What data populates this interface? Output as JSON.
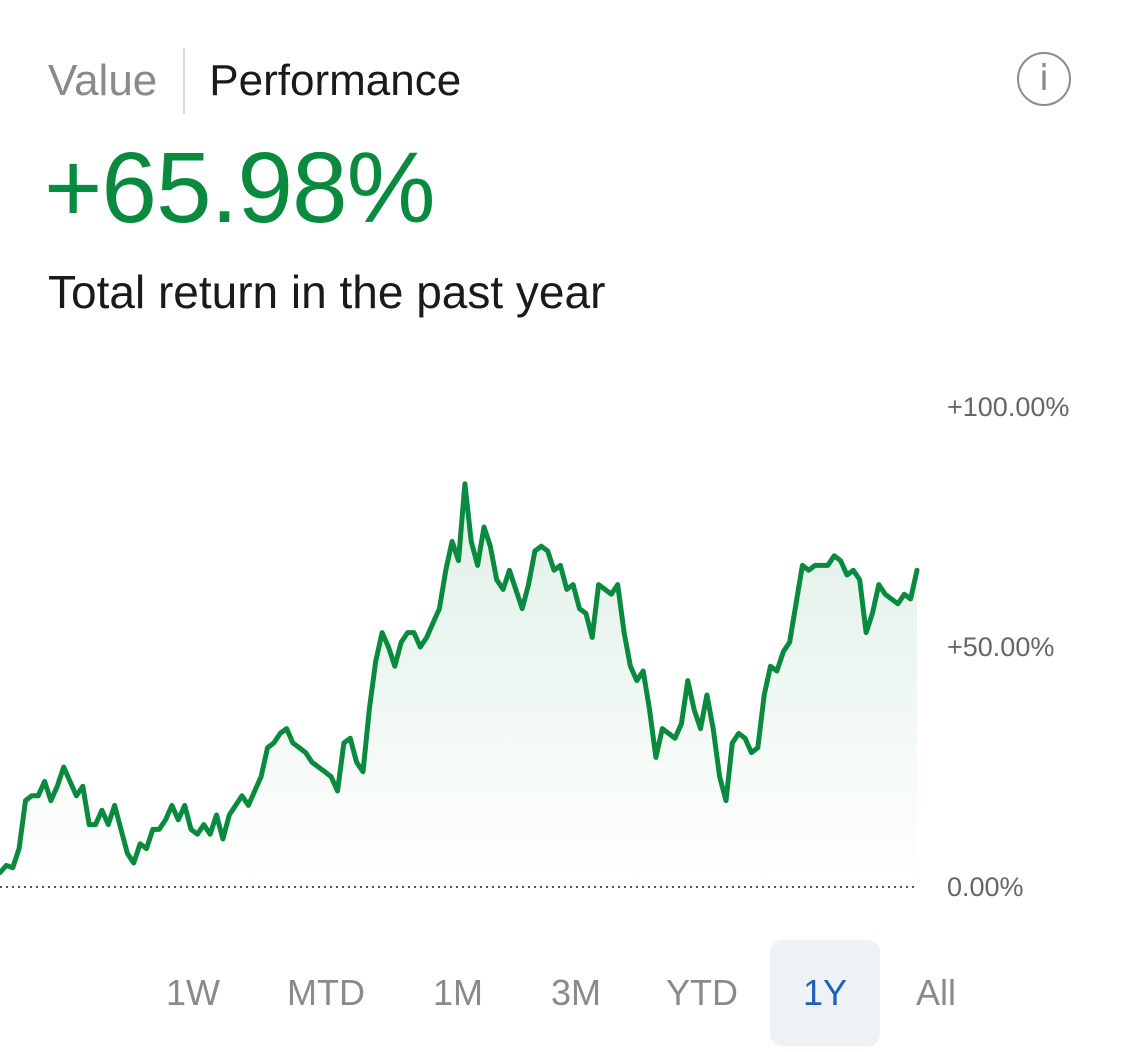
{
  "tabs": {
    "value_label": "Value",
    "performance_label": "Performance",
    "selected": "Performance"
  },
  "info_icon": {
    "icon": "info-icon",
    "glyph": "i"
  },
  "summary": {
    "value": "+65.98%",
    "caption": "Total return in the past year"
  },
  "colors": {
    "positive": "#0a8a3f",
    "muted": "#8a8a8a",
    "selected_range_text": "#1f5fbf",
    "selected_range_bg": "#eef1f5"
  },
  "ranges": {
    "items": [
      "1W",
      "MTD",
      "1M",
      "3M",
      "YTD",
      "1Y",
      "All"
    ],
    "selected": "1Y"
  },
  "chart_data": {
    "type": "area",
    "title": "",
    "xlabel": "",
    "ylabel": "",
    "ylim": [
      0,
      100
    ],
    "y_ticks": [
      100,
      50,
      0
    ],
    "y_tick_labels": [
      "+100.00%",
      "+50.00%",
      "0.00%"
    ],
    "baseline": 0,
    "baseline_style": "dotted",
    "y_axis_position": "right",
    "grid": false,
    "series": [
      {
        "values": [
          3,
          4.5,
          4,
          8,
          18,
          19,
          19,
          22,
          18,
          21,
          25,
          22,
          19,
          21,
          13,
          13,
          16,
          13,
          17,
          12,
          7,
          5,
          9,
          8,
          12,
          12,
          14,
          17,
          14,
          17,
          12,
          11,
          13,
          11,
          15,
          10,
          15,
          17,
          19,
          17,
          20,
          23,
          29,
          30,
          32,
          33,
          30,
          29,
          28,
          26,
          25,
          24,
          23,
          20,
          30,
          31,
          26,
          24,
          37,
          47,
          53,
          50,
          46,
          51,
          53,
          53,
          50,
          52,
          55,
          58,
          66,
          72,
          68,
          84,
          72,
          67,
          75,
          71,
          64,
          62,
          66,
          62,
          58,
          63,
          70,
          71,
          70,
          66,
          67,
          62,
          63,
          58,
          57,
          52,
          63,
          62,
          61,
          63,
          53,
          46,
          43,
          45,
          37,
          27,
          33,
          32,
          31,
          34,
          43,
          37,
          33,
          40,
          33,
          23,
          18,
          30,
          32,
          31,
          28,
          29,
          40,
          46,
          45,
          49,
          51,
          59,
          67,
          66,
          67,
          67,
          67,
          69,
          68,
          65,
          66,
          64,
          53,
          57,
          63,
          61,
          60,
          59,
          61,
          60,
          66
        ]
      }
    ]
  }
}
